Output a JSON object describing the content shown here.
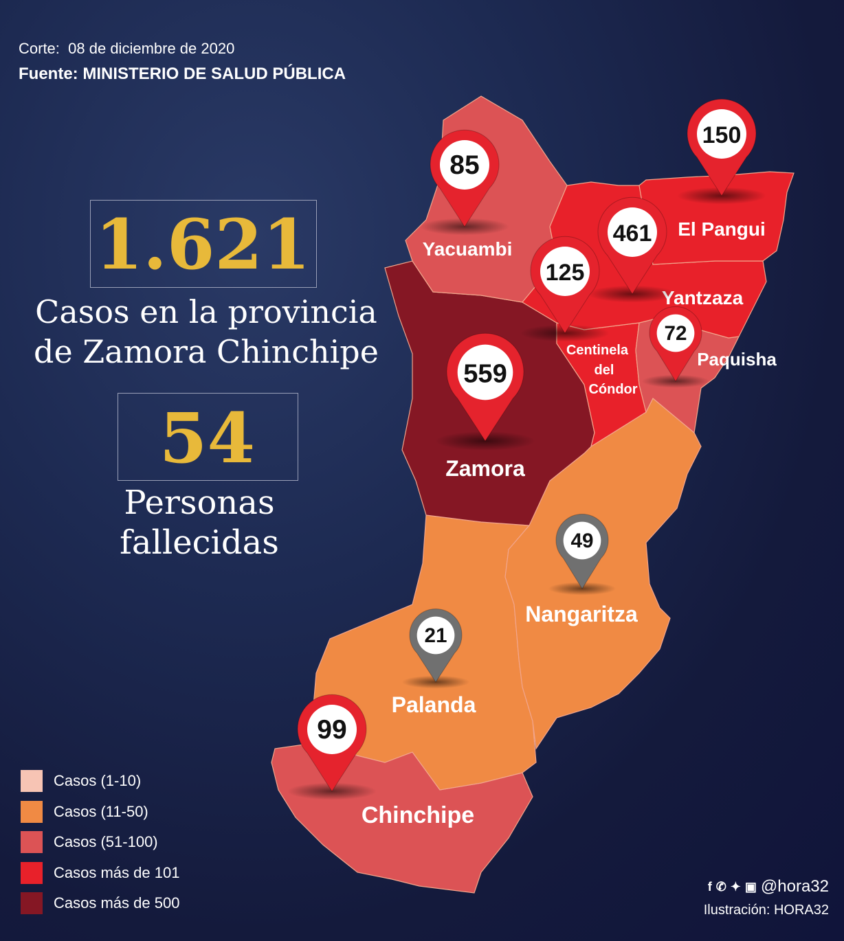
{
  "header": {
    "corte_label": "Corte:",
    "corte_date": "08 de diciembre de 2020",
    "fuente_label": "Fuente:",
    "fuente_value": "MINISTERIO DE SALUD PÚBLICA"
  },
  "stats": {
    "cases_number": "1.621",
    "cases_caption_1": "Casos en la provincia",
    "cases_caption_2": "de Zamora Chinchipe",
    "deaths_number": "54",
    "deaths_caption_1": "Personas",
    "deaths_caption_2": "fallecidas"
  },
  "regions": {
    "yacuambi": {
      "name": "Yacuambi",
      "cases": "85",
      "color": "#dc5355"
    },
    "el_pangui": {
      "name": "El Pangui",
      "cases": "150",
      "color": "#e8212a"
    },
    "yantzaza": {
      "name": "Yantzaza",
      "cases": "461",
      "color": "#e8212a"
    },
    "centinela": {
      "name_1": "Centinela",
      "name_2": "del",
      "name_3": "Cóndor",
      "cases": "125",
      "color": "#e8212a"
    },
    "paquisha": {
      "name": "Paquisha",
      "cases": "72",
      "color": "#dc5355"
    },
    "zamora": {
      "name": "Zamora",
      "cases": "559",
      "color": "#851724"
    },
    "nangaritza": {
      "name": "Nangaritza",
      "cases": "49",
      "color": "#f08a44"
    },
    "palanda": {
      "name": "Palanda",
      "cases": "21",
      "color": "#f08a44"
    },
    "chinchipe": {
      "name": "Chinchipe",
      "cases": "99",
      "color": "#dc5355"
    }
  },
  "legend": [
    {
      "label": "Casos (1-10)",
      "color": "#f7c4b4"
    },
    {
      "label": "Casos (11-50)",
      "color": "#f08a44"
    },
    {
      "label": "Casos (51-100)",
      "color": "#dc5355"
    },
    {
      "label": "Casos más de 101",
      "color": "#e8212a"
    },
    {
      "label": "Casos más de 500",
      "color": "#851724"
    }
  ],
  "footer": {
    "handle": "@hora32",
    "credit": "Ilustración: HORA32"
  },
  "pin_colors": {
    "red": "#e5232d",
    "gray": "#707070"
  }
}
